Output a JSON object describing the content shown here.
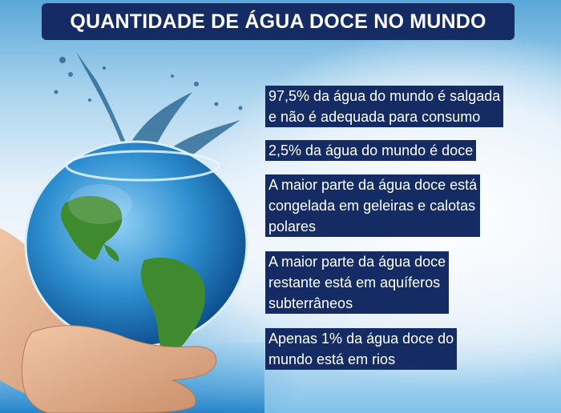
{
  "title": "QUANTIDADE DE ÁGUA DOCE NO MUNDO",
  "facts": [
    {
      "lines": [
        "97,5% da água do mundo é salgada",
        "e não é adequada para consumo"
      ]
    },
    {
      "lines": [
        "2,5% da água do mundo é doce"
      ]
    },
    {
      "lines": [
        "A maior parte da água doce está",
        "congelada em geleiras e calotas",
        "polares"
      ]
    },
    {
      "lines": [
        "A maior parte da água doce",
        "restante está em aquíferos",
        "subterrâneos"
      ]
    },
    {
      "lines": [
        "Apenas 1% da água doce do",
        "mundo está em rios"
      ]
    }
  ],
  "colors": {
    "banner": "#142b63",
    "text": "#ffffff",
    "water": "#2e8fd0",
    "land": "#3f8a2e"
  },
  "illustration": "hands-holding-globe-in-water-bowl"
}
